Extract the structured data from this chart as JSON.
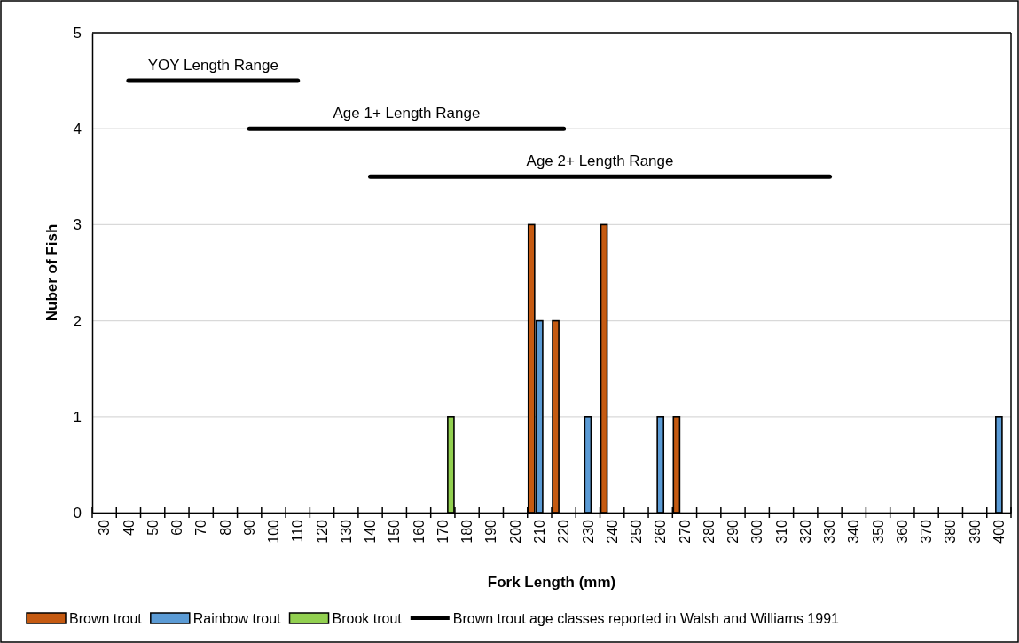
{
  "chart_data": {
    "type": "bar",
    "xlabel": "Fork Length (mm)",
    "ylabel": "Nuber of Fish",
    "categories": [
      "30",
      "40",
      "50",
      "60",
      "70",
      "80",
      "90",
      "100",
      "110",
      "120",
      "130",
      "140",
      "150",
      "160",
      "170",
      "180",
      "190",
      "200",
      "210",
      "220",
      "230",
      "240",
      "250",
      "260",
      "270",
      "280",
      "290",
      "300",
      "310",
      "320",
      "330",
      "340",
      "350",
      "360",
      "370",
      "380",
      "390",
      "400"
    ],
    "series": [
      {
        "name": "Brown trout",
        "color": "#c55a11",
        "values": [
          0,
          0,
          0,
          0,
          0,
          0,
          0,
          0,
          0,
          0,
          0,
          0,
          0,
          0,
          0,
          0,
          0,
          0,
          3,
          2,
          0,
          3,
          0,
          0,
          1,
          0,
          0,
          0,
          0,
          0,
          0,
          0,
          0,
          0,
          0,
          0,
          0,
          0
        ]
      },
      {
        "name": "Rainbow trout",
        "color": "#5b9bd5",
        "values": [
          0,
          0,
          0,
          0,
          0,
          0,
          0,
          0,
          0,
          0,
          0,
          0,
          0,
          0,
          0,
          0,
          0,
          0,
          2,
          0,
          1,
          0,
          0,
          1,
          0,
          0,
          0,
          0,
          0,
          0,
          0,
          0,
          0,
          0,
          0,
          0,
          0,
          1
        ]
      },
      {
        "name": "Brook trout",
        "color": "#92d050",
        "values": [
          0,
          0,
          0,
          0,
          0,
          0,
          0,
          0,
          0,
          0,
          0,
          0,
          0,
          0,
          1,
          0,
          0,
          0,
          0,
          0,
          0,
          0,
          0,
          0,
          0,
          0,
          0,
          0,
          0,
          0,
          0,
          0,
          0,
          0,
          0,
          0,
          0,
          0
        ]
      },
      {
        "name": "Brown trout age classes reported in Walsh and Williams 1991",
        "type": "line",
        "color": "#000000",
        "values": [
          null,
          4.5,
          4.5,
          4.5,
          4.5,
          4.5,
          4.5,
          4.5,
          4.5,
          null,
          null,
          null,
          null,
          null,
          null,
          null,
          null,
          null,
          null,
          null,
          null,
          null,
          null,
          null,
          null,
          null,
          null,
          null,
          null,
          null,
          null,
          null,
          null,
          null,
          null,
          null,
          null,
          null
        ]
      },
      {
        "type": "line",
        "color": "#000000",
        "values": [
          null,
          null,
          null,
          null,
          null,
          null,
          4,
          4,
          4,
          4,
          4,
          4,
          4,
          4,
          4,
          4,
          4,
          4,
          4,
          4,
          null,
          null,
          null,
          null,
          null,
          null,
          null,
          null,
          null,
          null,
          null,
          null,
          null,
          null,
          null,
          null,
          null,
          null
        ]
      },
      {
        "type": "line",
        "color": "#000000",
        "values": [
          null,
          null,
          null,
          null,
          null,
          null,
          null,
          null,
          null,
          null,
          null,
          3.5,
          3.5,
          3.5,
          3.5,
          3.5,
          3.5,
          3.5,
          3.5,
          3.5,
          3.5,
          3.5,
          3.5,
          3.5,
          3.5,
          3.5,
          3.5,
          3.5,
          3.5,
          3.5,
          3.5,
          null,
          null,
          null,
          null,
          null,
          null,
          null
        ]
      }
    ],
    "annotations": [
      "YOY Length Range",
      "Age 1+ Length Range",
      "Age 2+ Length Range"
    ],
    "ylim": [
      0,
      5
    ],
    "yticks": [
      0,
      1,
      2,
      3,
      4,
      5
    ],
    "grid": "y",
    "legend": "bottom",
    "marker": "none",
    "line_style": "solid"
  }
}
